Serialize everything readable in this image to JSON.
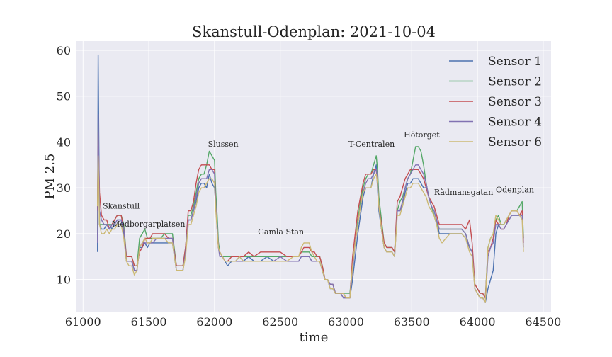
{
  "chart_data": {
    "type": "line",
    "title": "Skanstull-Odenplan: 2021-10-04",
    "xlabel": "time",
    "ylabel": "PM 2.5",
    "xlim": [
      60950,
      64560
    ],
    "ylim": [
      3,
      62
    ],
    "xticks": [
      61000,
      61500,
      62000,
      62500,
      63000,
      63500,
      64000,
      64500
    ],
    "yticks": [
      10,
      20,
      30,
      40,
      50,
      60
    ],
    "grid": true,
    "legend_position": "top-right",
    "colors": {
      "background": "#eaeaf2",
      "grid": "#ffffff",
      "Sensor 1": "#4c72b0",
      "Sensor 2": "#55a868",
      "Sensor 3": "#c44e52",
      "Sensor 4": "#8172b2",
      "Sensor 6": "#ccb974"
    },
    "annotations": [
      {
        "text": "Skanstull",
        "x": 61150,
        "y": 25.5
      },
      {
        "text": "Medborgarplatsen",
        "x": 61220,
        "y": 21.5
      },
      {
        "text": "Slussen",
        "x": 61950,
        "y": 39
      },
      {
        "text": "Gamla Stan",
        "x": 62330,
        "y": 19.8
      },
      {
        "text": "T-Centralen",
        "x": 63020,
        "y": 39
      },
      {
        "text": "Hötorget",
        "x": 63440,
        "y": 41
      },
      {
        "text": "Rådmansgatan",
        "x": 63670,
        "y": 28.5
      },
      {
        "text": "Odenplan",
        "x": 64140,
        "y": 29
      }
    ],
    "x": [
      61110,
      61115,
      61125,
      61140,
      61160,
      61180,
      61200,
      61220,
      61240,
      61260,
      61290,
      61310,
      61330,
      61350,
      61370,
      61390,
      61410,
      61430,
      61450,
      61470,
      61490,
      61510,
      61530,
      61560,
      61590,
      61620,
      61650,
      61680,
      61710,
      61740,
      61760,
      61780,
      61800,
      61820,
      61840,
      61860,
      61880,
      61900,
      61920,
      61940,
      61960,
      61980,
      62000,
      62010,
      62020,
      62030,
      62040,
      62060,
      62080,
      62100,
      62130,
      62160,
      62190,
      62220,
      62260,
      62300,
      62350,
      62400,
      62450,
      62500,
      62550,
      62600,
      62640,
      62660,
      62680,
      62700,
      62720,
      62740,
      62760,
      62780,
      62800,
      62820,
      62840,
      62860,
      62880,
      62900,
      62920,
      62940,
      62960,
      62980,
      63000,
      63010,
      63030,
      63050,
      63070,
      63090,
      63110,
      63130,
      63150,
      63170,
      63190,
      63210,
      63230,
      63240,
      63250,
      63270,
      63290,
      63310,
      63330,
      63350,
      63370,
      63390,
      63410,
      63430,
      63450,
      63470,
      63490,
      63510,
      63530,
      63550,
      63570,
      63590,
      63610,
      63630,
      63650,
      63670,
      63690,
      63710,
      63730,
      63760,
      63790,
      63820,
      63850,
      63880,
      63910,
      63940,
      63960,
      63980,
      64000,
      64020,
      64040,
      64060,
      64080,
      64100,
      64120,
      64140,
      64160,
      64180,
      64200,
      64220,
      64240,
      64260,
      64280,
      64300,
      64320,
      64340,
      64350
    ],
    "series": [
      {
        "name": "Sensor 1",
        "values": [
          16,
          59,
          22,
          21,
          21,
          22,
          22,
          21,
          22,
          23,
          23,
          20,
          14,
          14,
          14,
          12,
          12,
          17,
          17,
          18,
          17,
          18,
          18,
          18,
          18,
          18,
          18,
          18,
          12,
          12,
          12,
          16,
          23,
          23,
          25,
          27,
          30,
          31,
          31,
          30,
          33,
          31,
          30,
          26,
          22,
          18,
          16,
          15,
          14,
          13,
          14,
          14,
          15,
          14,
          15,
          14,
          14,
          15,
          14,
          14,
          14,
          14,
          14,
          15,
          15,
          15,
          15,
          14,
          14,
          14,
          14,
          12,
          10,
          10,
          8,
          8,
          7,
          7,
          7,
          6,
          6,
          6,
          6,
          10,
          15,
          20,
          24,
          28,
          30,
          30,
          30,
          33,
          35,
          30,
          25,
          21,
          17,
          16,
          16,
          16,
          15,
          25,
          25,
          26,
          29,
          31,
          31,
          32,
          32,
          32,
          31,
          30,
          30,
          28,
          26,
          25,
          23,
          20,
          20,
          20,
          20,
          20,
          20,
          20,
          19,
          17,
          16,
          8,
          7,
          6,
          6,
          5,
          8,
          10,
          12,
          20,
          22,
          22,
          22,
          23,
          23,
          24,
          24,
          24,
          24,
          24,
          24
        ]
      },
      {
        "name": "Sensor 2",
        "values": [
          20,
          44,
          22,
          22,
          22,
          22,
          22,
          22,
          23,
          24,
          24,
          22,
          15,
          15,
          15,
          13,
          13,
          19,
          20,
          21,
          19,
          19,
          19,
          19,
          19,
          20,
          20,
          20,
          13,
          13,
          13,
          17,
          24,
          24,
          26,
          29,
          32,
          33,
          33,
          35,
          38,
          37,
          36,
          29,
          24,
          18,
          16,
          15,
          15,
          15,
          15,
          15,
          15,
          15,
          15,
          15,
          15,
          15,
          15,
          15,
          15,
          15,
          15,
          16,
          16,
          16,
          16,
          15,
          15,
          15,
          15,
          13,
          10,
          10,
          9,
          9,
          7,
          7,
          7,
          7,
          7,
          7,
          7,
          13,
          18,
          23,
          27,
          30,
          32,
          33,
          33,
          35,
          37,
          34,
          28,
          23,
          18,
          17,
          17,
          17,
          16,
          25,
          27,
          28,
          30,
          32,
          33,
          36,
          39,
          39,
          38,
          35,
          31,
          28,
          26,
          24,
          22,
          21,
          21,
          21,
          21,
          21,
          21,
          21,
          20,
          17,
          16,
          9,
          8,
          7,
          7,
          6,
          17,
          19,
          20,
          23,
          24,
          22,
          22,
          23,
          24,
          25,
          25,
          25,
          26,
          27,
          19
        ]
      },
      {
        "name": "Sensor 3",
        "values": [
          25,
          42,
          29,
          24,
          23,
          23,
          21,
          22,
          23,
          24,
          24,
          21,
          15,
          15,
          15,
          13,
          13,
          16,
          17,
          19,
          19,
          19,
          20,
          20,
          20,
          20,
          19,
          19,
          13,
          13,
          13,
          17,
          25,
          25,
          27,
          31,
          34,
          35,
          35,
          35,
          35,
          34,
          34,
          26,
          21,
          17,
          16,
          15,
          14,
          14,
          15,
          15,
          15,
          15,
          16,
          15,
          16,
          16,
          16,
          16,
          15,
          15,
          15,
          16,
          17,
          17,
          17,
          16,
          16,
          15,
          15,
          13,
          10,
          10,
          9,
          9,
          7,
          7,
          7,
          7,
          6,
          6,
          6,
          15,
          20,
          25,
          28,
          31,
          33,
          33,
          33,
          34,
          34,
          31,
          26,
          22,
          18,
          17,
          17,
          17,
          16,
          27,
          28,
          30,
          32,
          33,
          34,
          34,
          34,
          34,
          33,
          32,
          30,
          28,
          27,
          26,
          24,
          22,
          22,
          22,
          22,
          22,
          22,
          22,
          21,
          23,
          18,
          9,
          8,
          7,
          7,
          6,
          16,
          17,
          19,
          23,
          22,
          21,
          21,
          22,
          24,
          25,
          25,
          25,
          24,
          25,
          18
        ]
      },
      {
        "name": "Sensor 4",
        "values": [
          18,
          46,
          25,
          23,
          22,
          22,
          21,
          22,
          22,
          23,
          23,
          21,
          14,
          14,
          14,
          12,
          12,
          17,
          18,
          18,
          18,
          18,
          18,
          19,
          19,
          19,
          19,
          19,
          12,
          12,
          12,
          16,
          23,
          23,
          25,
          28,
          31,
          32,
          32,
          32,
          34,
          34,
          33,
          26,
          22,
          17,
          15,
          15,
          14,
          14,
          14,
          14,
          14,
          14,
          14,
          14,
          14,
          14,
          14,
          15,
          14,
          14,
          14,
          15,
          15,
          15,
          15,
          14,
          14,
          14,
          14,
          12,
          10,
          10,
          9,
          9,
          7,
          7,
          7,
          6,
          6,
          6,
          6,
          12,
          18,
          22,
          26,
          29,
          31,
          32,
          32,
          33,
          34,
          32,
          26,
          21,
          17,
          16,
          16,
          16,
          15,
          25,
          25,
          27,
          30,
          32,
          33,
          34,
          35,
          35,
          34,
          33,
          31,
          28,
          26,
          25,
          23,
          21,
          21,
          21,
          21,
          21,
          21,
          21,
          20,
          17,
          16,
          8,
          7,
          6,
          6,
          5,
          15,
          17,
          18,
          22,
          22,
          21,
          21,
          22,
          23,
          24,
          24,
          24,
          24,
          24,
          17
        ]
      },
      {
        "name": "Sensor 6",
        "values": [
          26,
          37,
          22,
          20,
          20,
          21,
          20,
          21,
          21,
          22,
          22,
          19,
          14,
          13,
          13,
          11,
          12,
          17,
          18,
          19,
          18,
          18,
          19,
          19,
          19,
          19,
          18,
          18,
          12,
          12,
          12,
          15,
          22,
          22,
          24,
          26,
          29,
          30,
          30,
          31,
          32,
          32,
          31,
          25,
          21,
          17,
          16,
          15,
          14,
          14,
          14,
          14,
          15,
          14,
          14,
          14,
          14,
          14,
          14,
          14,
          14,
          15,
          15,
          17,
          18,
          18,
          18,
          16,
          15,
          14,
          14,
          12,
          10,
          10,
          8,
          8,
          7,
          7,
          7,
          7,
          6,
          6,
          6,
          13,
          18,
          22,
          26,
          29,
          30,
          30,
          30,
          32,
          33,
          31,
          26,
          21,
          17,
          16,
          16,
          16,
          15,
          24,
          24,
          26,
          28,
          30,
          30,
          31,
          31,
          31,
          30,
          29,
          28,
          26,
          25,
          24,
          22,
          19,
          18,
          19,
          20,
          20,
          20,
          20,
          19,
          16,
          15,
          8,
          7,
          6,
          6,
          5,
          17,
          19,
          20,
          24,
          23,
          22,
          22,
          23,
          24,
          25,
          25,
          25,
          24,
          23,
          16
        ]
      }
    ]
  }
}
